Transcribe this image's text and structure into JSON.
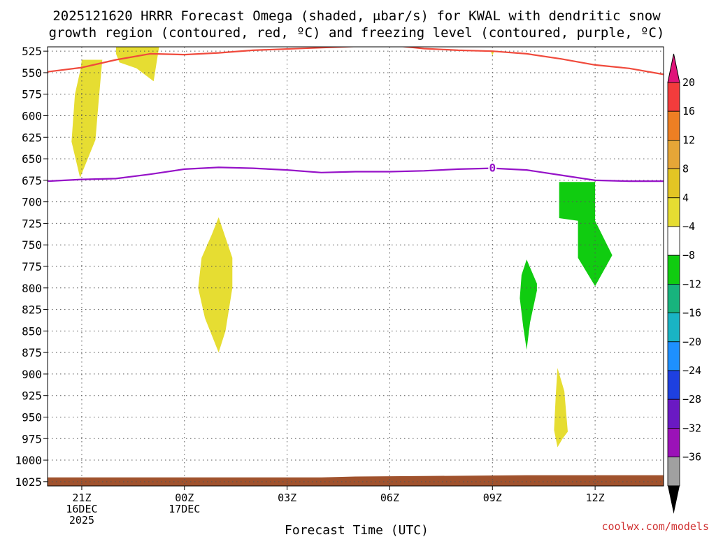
{
  "title_line1": "2025121620 HRRR Forecast Omega (shaded, μbar/s) for KWAL with dendritic snow",
  "title_line2": "growth region (contoured, red, ºC) and freezing level (contoured, purple, ºC)",
  "credit": "coolwx.com/models",
  "chart_data": {
    "type": "contour",
    "xlabel": "Forecast Time (UTC)",
    "ylabel": "",
    "xlim": [
      -1,
      17
    ],
    "ylim": [
      1030,
      520
    ],
    "x_unit": "hours from 2025-12-16 21Z",
    "x_ticks": [
      {
        "x": 0,
        "lines": [
          "21Z",
          "16DEC",
          "2025"
        ]
      },
      {
        "x": 3,
        "lines": [
          "00Z",
          "17DEC"
        ]
      },
      {
        "x": 6,
        "lines": [
          "03Z"
        ]
      },
      {
        "x": 9,
        "lines": [
          "06Z"
        ]
      },
      {
        "x": 12,
        "lines": [
          "09Z"
        ]
      },
      {
        "x": 15,
        "lines": [
          "12Z"
        ]
      }
    ],
    "y_ticks": [
      525,
      550,
      575,
      600,
      625,
      650,
      675,
      700,
      725,
      750,
      775,
      800,
      825,
      850,
      875,
      900,
      925,
      950,
      975,
      1000,
      1025
    ],
    "grid": true,
    "colorbar": {
      "levels": [
        -36,
        -32,
        -28,
        -24,
        -20,
        -16,
        -12,
        -8,
        -4,
        4,
        8,
        12,
        16,
        20
      ],
      "tick_labels": [
        "20",
        "16",
        "12",
        "8",
        "4",
        "−4",
        "−8",
        "−12",
        "−16",
        "−20",
        "−24",
        "−28",
        "−32",
        "−36"
      ],
      "colors_top_to_bottom": [
        "#f23c3c",
        "#ee7f23",
        "#e6a637",
        "#e3c524",
        "#e6dd32",
        "#ffffff",
        "#10cc10",
        "#18b37d",
        "#19b4c4",
        "#1e90ff",
        "#1e40e0",
        "#6a19c3",
        "#9b12b8",
        "#a0a0a0"
      ],
      "over_color": "#e0147a",
      "under_color": "#000000"
    },
    "contours": [
      {
        "name": "dendritic snow growth region",
        "color": "#f04a3c",
        "points": [
          [
            -1,
            549
          ],
          [
            0,
            544
          ],
          [
            1,
            535
          ],
          [
            2,
            528
          ],
          [
            3,
            529
          ],
          [
            4,
            527
          ],
          [
            5,
            524
          ],
          [
            7,
            521
          ],
          [
            9,
            518
          ],
          [
            10,
            522
          ],
          [
            11,
            524
          ],
          [
            12,
            525
          ],
          [
            13,
            528
          ],
          [
            14,
            534
          ],
          [
            15,
            541
          ],
          [
            16,
            545
          ],
          [
            17,
            552
          ]
        ]
      },
      {
        "name": "freezing level",
        "color": "#9612c8",
        "label": "0",
        "label_at": [
          12,
          661
        ],
        "points": [
          [
            -1,
            676
          ],
          [
            0,
            674
          ],
          [
            1,
            673
          ],
          [
            2,
            668
          ],
          [
            3,
            662
          ],
          [
            4,
            660
          ],
          [
            5,
            661
          ],
          [
            6,
            663
          ],
          [
            7,
            666
          ],
          [
            8,
            665
          ],
          [
            9,
            665
          ],
          [
            10,
            664
          ],
          [
            11,
            662
          ],
          [
            12,
            661
          ],
          [
            13,
            663
          ],
          [
            14,
            669
          ],
          [
            15,
            675
          ],
          [
            16,
            676
          ],
          [
            17,
            676
          ]
        ]
      }
    ],
    "shaded_regions": [
      {
        "color": "#e6dd32",
        "points": [
          [
            -0.3,
            630
          ],
          [
            -0.2,
            575
          ],
          [
            -0.03,
            545
          ],
          [
            0,
            535
          ],
          [
            0.6,
            535
          ],
          [
            0.5,
            580
          ],
          [
            0.4,
            628
          ],
          [
            -0.05,
            672
          ]
        ]
      },
      {
        "color": "#e6dd32",
        "points": [
          [
            1,
            510
          ],
          [
            2.3,
            510
          ],
          [
            2.1,
            560
          ],
          [
            1.6,
            545
          ],
          [
            1.1,
            538
          ],
          [
            1,
            528
          ]
        ]
      },
      {
        "color": "#e6dd32",
        "points": [
          [
            4,
            718
          ],
          [
            4.4,
            765
          ],
          [
            4.4,
            800
          ],
          [
            4.2,
            850
          ],
          [
            4,
            875
          ],
          [
            3.6,
            835
          ],
          [
            3.4,
            800
          ],
          [
            3.5,
            765
          ],
          [
            3.8,
            738
          ]
        ]
      },
      {
        "color": "#e6dd32",
        "points": [
          [
            11.95,
            525
          ],
          [
            12.05,
            525
          ],
          [
            12,
            530
          ]
        ]
      },
      {
        "color": "#e6dd32",
        "points": [
          [
            13.9,
            893
          ],
          [
            14.1,
            920
          ],
          [
            14.2,
            967
          ],
          [
            14.05,
            975
          ],
          [
            13.9,
            985
          ],
          [
            13.8,
            965
          ],
          [
            13.85,
            925
          ]
        ]
      },
      {
        "color": "#10cc10",
        "points": [
          [
            13,
            767
          ],
          [
            13.3,
            795
          ],
          [
            13.3,
            803
          ],
          [
            13.1,
            840
          ],
          [
            13,
            872
          ],
          [
            12.9,
            845
          ],
          [
            12.8,
            812
          ],
          [
            12.85,
            785
          ]
        ]
      },
      {
        "color": "#10cc10",
        "points": [
          [
            13.95,
            677
          ],
          [
            15,
            677
          ],
          [
            15,
            722
          ],
          [
            15.5,
            762
          ],
          [
            15,
            798
          ],
          [
            14.5,
            765
          ],
          [
            14.5,
            722
          ],
          [
            13.95,
            719
          ]
        ]
      }
    ],
    "terrain": {
      "color": "#a0522d",
      "points": [
        [
          -1,
          1020
        ],
        [
          7,
          1020
        ],
        [
          8,
          1019
        ],
        [
          10,
          1018.5
        ],
        [
          13,
          1017.5
        ],
        [
          17,
          1017.5
        ]
      ]
    }
  }
}
